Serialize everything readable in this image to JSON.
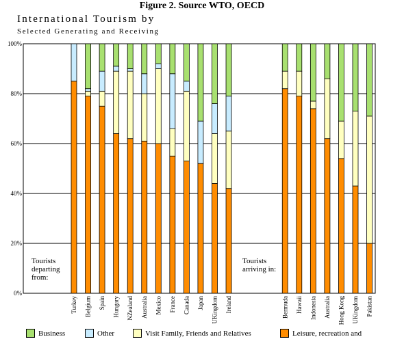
{
  "figure_title": "Figure 2. Source WTO, OECD",
  "chart_data": {
    "type": "bar",
    "stacked": true,
    "title": "International Tourism by",
    "subtitle": "Selected Generating and Receiving",
    "xlabel": "",
    "ylabel": "",
    "ylim": [
      0,
      100
    ],
    "yticks": [
      "0%",
      "20%",
      "40%",
      "60%",
      "80%",
      "100%"
    ],
    "grid": true,
    "legend_position": "bottom",
    "groups": [
      {
        "label": "Tourists departing from:",
        "categories": [
          "Turkey",
          "Belgium",
          "Spain",
          "Hungary",
          "NZealand",
          "Australia",
          "Mexico",
          "France",
          "Canada",
          "Japan",
          "UKingdom",
          "Ireland"
        ]
      },
      {
        "label": "Tourists arriving in:",
        "categories": [
          "Bermuda",
          "Hawaii",
          "Indonesia",
          "Australia",
          "Hong Kong",
          "UKingdom",
          "Pakistan"
        ]
      }
    ],
    "categories": [
      "Turkey",
      "Belgium",
      "Spain",
      "Hungary",
      "NZealand",
      "Australia",
      "Mexico",
      "France",
      "Canada",
      "Japan",
      "UKingdom",
      "Ireland",
      "",
      "",
      "",
      "Bermuda",
      "Hawaii",
      "Indonesia",
      "Australia",
      "Hong Kong",
      "UKingdom",
      "Pakistan"
    ],
    "series": [
      {
        "name": "Leisure, recreation and",
        "color": "#ff8c00",
        "values": [
          85,
          79,
          75,
          64,
          62,
          61,
          60,
          55,
          53,
          52,
          44,
          42,
          null,
          null,
          null,
          82,
          79,
          74,
          62,
          54,
          43,
          20
        ]
      },
      {
        "name": "Visit Family, Friends and Relatives",
        "color": "#ffffc0",
        "values": [
          0,
          2,
          6,
          25,
          27,
          19,
          30,
          11,
          28,
          0,
          20,
          23,
          null,
          null,
          null,
          7,
          10,
          3,
          24,
          15,
          30,
          51
        ]
      },
      {
        "name": "Other",
        "color": "#c8ecff",
        "values": [
          15,
          1,
          8,
          2,
          1,
          8,
          2,
          22,
          4,
          17,
          12,
          14,
          null,
          null,
          null,
          0,
          0,
          0,
          0,
          0,
          0,
          0
        ]
      },
      {
        "name": "Business",
        "color": "#a8e070",
        "values": [
          0,
          18,
          11,
          9,
          10,
          12,
          8,
          12,
          15,
          31,
          24,
          21,
          null,
          null,
          null,
          11,
          11,
          23,
          14,
          31,
          27,
          29
        ]
      }
    ],
    "legend_order": [
      "Business",
      "Other",
      "Visit Family, Friends and Relatives",
      "Leisure, recreation and"
    ]
  }
}
